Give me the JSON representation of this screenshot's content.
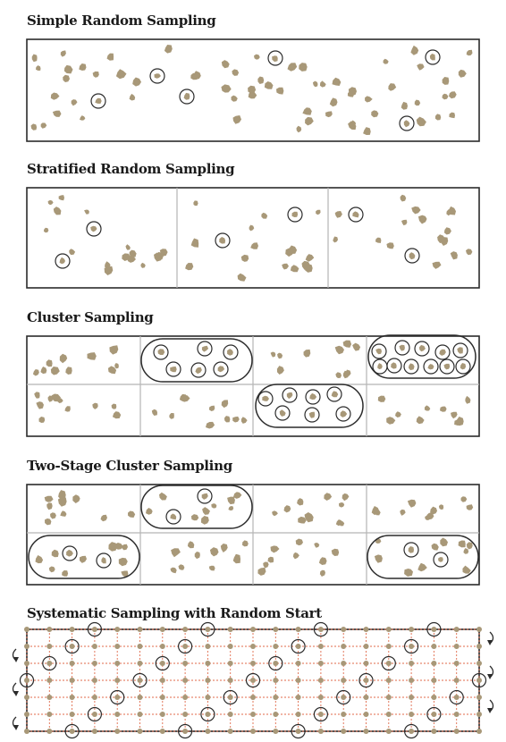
{
  "panels": [
    {
      "id": "simple",
      "title": "Simple Random Sampling"
    },
    {
      "id": "stratified",
      "title": "Stratified Random Sampling"
    },
    {
      "id": "cluster",
      "title": "Cluster Sampling"
    },
    {
      "id": "two_stage",
      "title": "Two-Stage Cluster Sampling"
    },
    {
      "id": "systematic",
      "title": "Systematic Sampling with Random Start"
    }
  ],
  "colors": {
    "dot": "#a89878",
    "frame": "#2b2b2b",
    "divider": "#b5b5b5",
    "ring": "#2b2b2b",
    "grid_dashed": "#e06a4a"
  }
}
